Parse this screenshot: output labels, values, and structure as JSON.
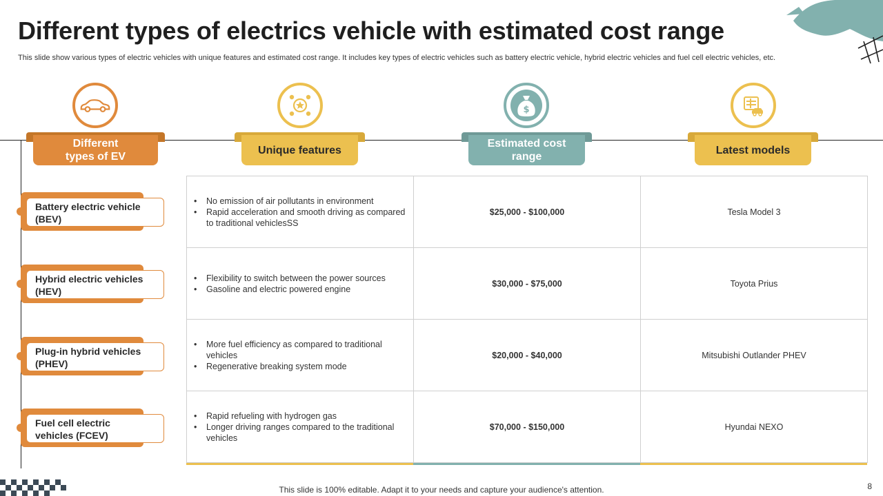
{
  "title": "Different types of electrics vehicle with estimated cost range",
  "subtitle": "This slide show various types of electric vehicles with unique features and estimated cost range. It includes key types of electric vehicles such as battery electric vehicle, hybrid electric vehicles and fuel cell electric vehicles, etc.",
  "colors": {
    "orange": "#e08a3c",
    "yellow": "#ecc04f",
    "teal": "#82b1ae",
    "dark_tab": "#c47628"
  },
  "headers": [
    {
      "line1": "Different",
      "line2": "types of EV",
      "icon": "car-icon"
    },
    {
      "line1": "Unique features",
      "line2": "",
      "icon": "star-network-icon"
    },
    {
      "line1": "Estimated cost",
      "line2": "range",
      "icon": "money-bag-icon"
    },
    {
      "line1": "Latest models",
      "line2": "",
      "icon": "vehicle-list-icon"
    }
  ],
  "rows": [
    {
      "type_line1": "Battery electric vehicle",
      "type_line2": "(BEV)",
      "features": [
        "No emission of air pollutants in environment",
        "Rapid acceleration and smooth driving as compared to traditional vehiclesSS"
      ],
      "cost": "$25,000 - $100,000",
      "model": "Tesla Model 3"
    },
    {
      "type_line1": "Hybrid electric vehicles",
      "type_line2": "(HEV)",
      "features": [
        "Flexibility to switch between the power sources",
        "Gasoline and electric powered engine"
      ],
      "cost": "$30,000 - $75,000",
      "model": "Toyota Prius"
    },
    {
      "type_line1": "Plug-in hybrid vehicles",
      "type_line2": "(PHEV)",
      "features": [
        "More fuel efficiency as compared to traditional vehicles",
        "Regenerative breaking system mode"
      ],
      "cost": "$20,000 - $40,000",
      "model": "Mitsubishi Outlander PHEV"
    },
    {
      "type_line1": "Fuel cell electric",
      "type_line2": "vehicles (FCEV)",
      "features": [
        "Rapid refueling with hydrogen gas",
        "Longer driving ranges compared to the traditional vehicles"
      ],
      "cost": "$70,000 - $150,000",
      "model": "Hyundai NEXO"
    }
  ],
  "footer": "This slide is 100% editable. Adapt it to your needs and capture your audience's attention.",
  "page_number": "8"
}
